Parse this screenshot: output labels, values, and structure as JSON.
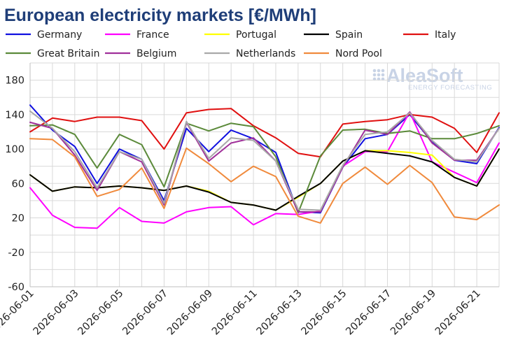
{
  "chart_data": {
    "type": "line",
    "title": "European electricity markets [€/MWh]",
    "xlabel": "",
    "ylabel": "",
    "ylim": [
      -60,
      200
    ],
    "yticks": [
      -60,
      -20,
      20,
      60,
      100,
      140,
      180
    ],
    "grid": true,
    "legend_position": "top",
    "x": [
      "2026-06-01",
      "2026-06-02",
      "2026-06-03",
      "2026-06-04",
      "2026-06-05",
      "2026-06-06",
      "2026-06-07",
      "2026-06-08",
      "2026-06-09",
      "2026-06-10",
      "2026-06-11",
      "2026-06-12",
      "2026-06-13",
      "2026-06-14",
      "2026-06-15",
      "2026-06-16",
      "2026-06-17",
      "2026-06-18",
      "2026-06-19",
      "2026-06-20",
      "2026-06-21",
      "2026-06-22"
    ],
    "xtick_labels": [
      "2026-06-01",
      "2026-06-03",
      "2026-06-05",
      "2026-06-07",
      "2026-06-09",
      "2026-06-11",
      "2026-06-13",
      "2026-06-15",
      "2026-06-17",
      "2026-06-19",
      "2026-06-21"
    ],
    "series": [
      {
        "name": "Germany",
        "color": "#1010e0",
        "values": [
          151,
          122,
          103,
          60,
          100,
          88,
          40,
          124,
          97,
          122,
          112,
          96,
          27,
          26,
          79,
          112,
          117,
          140,
          108,
          87,
          83,
          125
        ]
      },
      {
        "name": "France",
        "color": "#ff00ff",
        "values": [
          55,
          23,
          9,
          8,
          32,
          16,
          14,
          27,
          32,
          33,
          12,
          25,
          24,
          28,
          80,
          97,
          97,
          143,
          85,
          73,
          61,
          107
        ]
      },
      {
        "name": "Portugal",
        "color": "#ffff00",
        "values": [
          70,
          51,
          56,
          55,
          57,
          55,
          52,
          57,
          51,
          38,
          35,
          29,
          44,
          60,
          86,
          98,
          98,
          96,
          93,
          67,
          57,
          100
        ]
      },
      {
        "name": "Spain",
        "color": "#000000",
        "values": [
          70,
          51,
          56,
          55,
          57,
          55,
          52,
          57,
          50,
          38,
          35,
          29,
          45,
          60,
          86,
          98,
          95,
          92,
          85,
          67,
          57,
          100
        ]
      },
      {
        "name": "Italy",
        "color": "#e01010",
        "values": [
          120,
          136,
          132,
          137,
          137,
          133,
          100,
          142,
          146,
          147,
          127,
          113,
          95,
          91,
          129,
          132,
          134,
          140,
          137,
          124,
          96,
          142
        ]
      },
      {
        "name": "Great Britain",
        "color": "#5b8a3a",
        "values": [
          127,
          128,
          117,
          78,
          117,
          105,
          56,
          130,
          121,
          130,
          126,
          91,
          26,
          92,
          122,
          123,
          118,
          121,
          112,
          112,
          118,
          127
        ]
      },
      {
        "name": "Belgium",
        "color": "#a0309a",
        "values": [
          131,
          124,
          93,
          52,
          97,
          85,
          35,
          131,
          86,
          107,
          113,
          86,
          27,
          27,
          79,
          122,
          117,
          143,
          107,
          87,
          87,
          124
        ]
      },
      {
        "name": "Netherlands",
        "color": "#a8a8a8",
        "values": [
          144,
          124,
          97,
          55,
          97,
          88,
          37,
          132,
          89,
          113,
          110,
          86,
          30,
          29,
          81,
          117,
          120,
          142,
          110,
          88,
          85,
          124
        ]
      },
      {
        "name": "Nord Pool",
        "color": "#f08a3c",
        "values": [
          112,
          111,
          91,
          45,
          53,
          78,
          31,
          101,
          83,
          62,
          80,
          68,
          22,
          14,
          60,
          79,
          59,
          81,
          61,
          21,
          18,
          35
        ]
      }
    ]
  },
  "logo": {
    "main": "AleaSoft",
    "sub": "ENERGY FORECASTING"
  }
}
